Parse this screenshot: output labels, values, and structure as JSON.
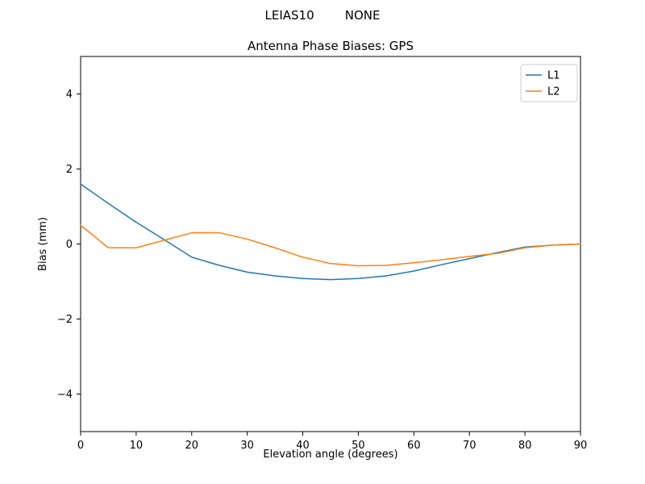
{
  "figure": {
    "suptitle": "LEIAS10        NONE",
    "title": "Antenna Phase Biases: GPS"
  },
  "chart_data": {
    "type": "line",
    "title": "Antenna Phase Biases: GPS",
    "suptitle": "LEIAS10        NONE",
    "xlabel": "Elevation angle (degrees)",
    "ylabel": "Bias (mm)",
    "xlim": [
      0,
      90
    ],
    "ylim": [
      -5,
      5
    ],
    "xticks": [
      0,
      10,
      20,
      30,
      40,
      50,
      60,
      70,
      80,
      90
    ],
    "yticks": [
      -4,
      -2,
      0,
      2,
      4
    ],
    "grid": false,
    "legend_position": "upper right",
    "x": [
      0,
      5,
      10,
      15,
      20,
      25,
      30,
      35,
      40,
      45,
      50,
      55,
      60,
      65,
      70,
      75,
      80,
      85,
      90
    ],
    "series": [
      {
        "name": "L1",
        "color": "#1f77b4",
        "values": [
          1.6,
          1.08,
          0.58,
          0.12,
          -0.35,
          -0.57,
          -0.75,
          -0.85,
          -0.92,
          -0.95,
          -0.92,
          -0.85,
          -0.72,
          -0.55,
          -0.39,
          -0.23,
          -0.08,
          -0.03,
          0.0
        ]
      },
      {
        "name": "L2",
        "color": "#ff7f0e",
        "values": [
          0.5,
          -0.1,
          -0.1,
          0.1,
          0.3,
          0.3,
          0.13,
          -0.1,
          -0.35,
          -0.52,
          -0.58,
          -0.57,
          -0.5,
          -0.42,
          -0.33,
          -0.25,
          -0.1,
          -0.03,
          0.0
        ]
      }
    ]
  }
}
